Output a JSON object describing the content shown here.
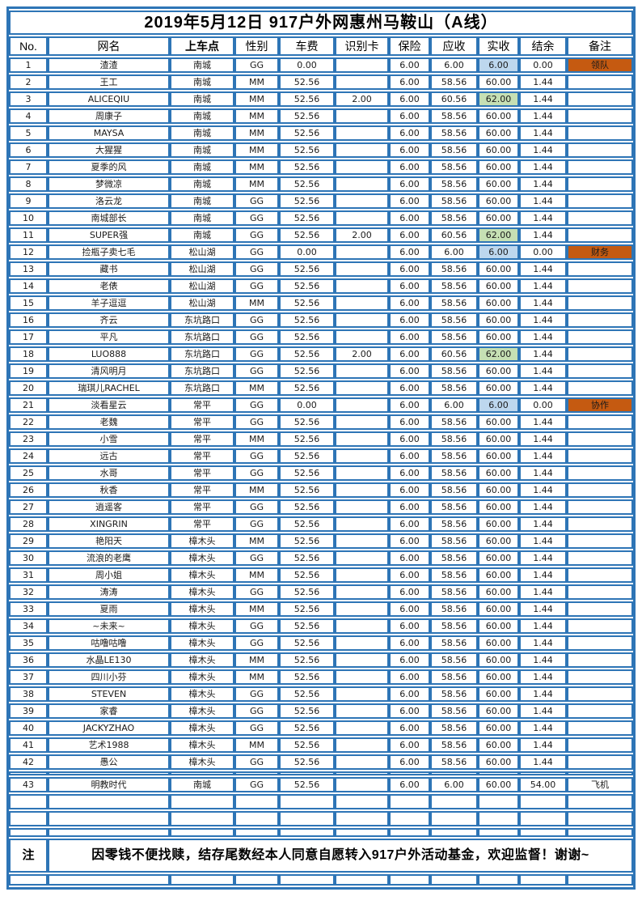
{
  "page": {
    "title": "2019年5月12日  917户外网惠州马鞍山（A线）"
  },
  "colors": {
    "border_blue": "#2E75B6",
    "fill_blue": "#BDD7EE",
    "fill_green": "#C6E0B4",
    "fill_orange": "#C55A11"
  },
  "table": {
    "columns": [
      {
        "key": "no",
        "label": "No."
      },
      {
        "key": "name",
        "label": "网名"
      },
      {
        "key": "stop",
        "label": "上车点"
      },
      {
        "key": "gender",
        "label": "性别"
      },
      {
        "key": "fare",
        "label": "车费"
      },
      {
        "key": "card",
        "label": "识别卡"
      },
      {
        "key": "insurance",
        "label": "保险"
      },
      {
        "key": "due",
        "label": "应收"
      },
      {
        "key": "paid",
        "label": "实收"
      },
      {
        "key": "balance",
        "label": "结余"
      },
      {
        "key": "remark",
        "label": "备注"
      }
    ],
    "rows": [
      {
        "no": "1",
        "name": "渣渣",
        "stop": "南城",
        "gender": "GG",
        "fare": "0.00",
        "card": "",
        "insurance": "6.00",
        "due": "6.00",
        "paid": "6.00",
        "balance": "0.00",
        "remark": "领队",
        "paid_hl": "blue",
        "remark_hl": true
      },
      {
        "no": "2",
        "name": "王工",
        "stop": "南城",
        "gender": "MM",
        "fare": "52.56",
        "card": "",
        "insurance": "6.00",
        "due": "58.56",
        "paid": "60.00",
        "balance": "1.44",
        "remark": ""
      },
      {
        "no": "3",
        "name": "ALICEQIU",
        "stop": "南城",
        "gender": "MM",
        "fare": "52.56",
        "card": "2.00",
        "insurance": "6.00",
        "due": "60.56",
        "paid": "62.00",
        "balance": "1.44",
        "remark": "",
        "paid_hl": "green"
      },
      {
        "no": "4",
        "name": "周康子",
        "stop": "南城",
        "gender": "MM",
        "fare": "52.56",
        "card": "",
        "insurance": "6.00",
        "due": "58.56",
        "paid": "60.00",
        "balance": "1.44",
        "remark": ""
      },
      {
        "no": "5",
        "name": "MAYSA",
        "stop": "南城",
        "gender": "MM",
        "fare": "52.56",
        "card": "",
        "insurance": "6.00",
        "due": "58.56",
        "paid": "60.00",
        "balance": "1.44",
        "remark": ""
      },
      {
        "no": "6",
        "name": "大猩猩",
        "stop": "南城",
        "gender": "MM",
        "fare": "52.56",
        "card": "",
        "insurance": "6.00",
        "due": "58.56",
        "paid": "60.00",
        "balance": "1.44",
        "remark": ""
      },
      {
        "no": "7",
        "name": "夏季的风",
        "stop": "南城",
        "gender": "MM",
        "fare": "52.56",
        "card": "",
        "insurance": "6.00",
        "due": "58.56",
        "paid": "60.00",
        "balance": "1.44",
        "remark": ""
      },
      {
        "no": "8",
        "name": "梦微凉",
        "stop": "南城",
        "gender": "MM",
        "fare": "52.56",
        "card": "",
        "insurance": "6.00",
        "due": "58.56",
        "paid": "60.00",
        "balance": "1.44",
        "remark": ""
      },
      {
        "no": "9",
        "name": "洛云龙",
        "stop": "南城",
        "gender": "GG",
        "fare": "52.56",
        "card": "",
        "insurance": "6.00",
        "due": "58.56",
        "paid": "60.00",
        "balance": "1.44",
        "remark": ""
      },
      {
        "no": "10",
        "name": "南城部长",
        "stop": "南城",
        "gender": "GG",
        "fare": "52.56",
        "card": "",
        "insurance": "6.00",
        "due": "58.56",
        "paid": "60.00",
        "balance": "1.44",
        "remark": ""
      },
      {
        "no": "11",
        "name": "SUPER强",
        "stop": "南城",
        "gender": "GG",
        "fare": "52.56",
        "card": "2.00",
        "insurance": "6.00",
        "due": "60.56",
        "paid": "62.00",
        "balance": "1.44",
        "remark": "",
        "paid_hl": "green"
      },
      {
        "no": "12",
        "name": "捡瓶子卖七毛",
        "stop": "松山湖",
        "gender": "GG",
        "fare": "0.00",
        "card": "",
        "insurance": "6.00",
        "due": "6.00",
        "paid": "6.00",
        "balance": "0.00",
        "remark": "财务",
        "paid_hl": "blue",
        "remark_hl": true
      },
      {
        "no": "13",
        "name": "藏书",
        "stop": "松山湖",
        "gender": "GG",
        "fare": "52.56",
        "card": "",
        "insurance": "6.00",
        "due": "58.56",
        "paid": "60.00",
        "balance": "1.44",
        "remark": ""
      },
      {
        "no": "14",
        "name": "老俵",
        "stop": "松山湖",
        "gender": "GG",
        "fare": "52.56",
        "card": "",
        "insurance": "6.00",
        "due": "58.56",
        "paid": "60.00",
        "balance": "1.44",
        "remark": ""
      },
      {
        "no": "15",
        "name": "羊子逗逗",
        "stop": "松山湖",
        "gender": "MM",
        "fare": "52.56",
        "card": "",
        "insurance": "6.00",
        "due": "58.56",
        "paid": "60.00",
        "balance": "1.44",
        "remark": ""
      },
      {
        "no": "16",
        "name": "齐云",
        "stop": "东坑路口",
        "gender": "GG",
        "fare": "52.56",
        "card": "",
        "insurance": "6.00",
        "due": "58.56",
        "paid": "60.00",
        "balance": "1.44",
        "remark": ""
      },
      {
        "no": "17",
        "name": "平凡",
        "stop": "东坑路口",
        "gender": "GG",
        "fare": "52.56",
        "card": "",
        "insurance": "6.00",
        "due": "58.56",
        "paid": "60.00",
        "balance": "1.44",
        "remark": ""
      },
      {
        "no": "18",
        "name": "LUO888",
        "stop": "东坑路口",
        "gender": "GG",
        "fare": "52.56",
        "card": "2.00",
        "insurance": "6.00",
        "due": "60.56",
        "paid": "62.00",
        "balance": "1.44",
        "remark": "",
        "paid_hl": "green"
      },
      {
        "no": "19",
        "name": "清风明月",
        "stop": "东坑路口",
        "gender": "GG",
        "fare": "52.56",
        "card": "",
        "insurance": "6.00",
        "due": "58.56",
        "paid": "60.00",
        "balance": "1.44",
        "remark": ""
      },
      {
        "no": "20",
        "name": "瑞琪儿RACHEL",
        "stop": "东坑路口",
        "gender": "MM",
        "fare": "52.56",
        "card": "",
        "insurance": "6.00",
        "due": "58.56",
        "paid": "60.00",
        "balance": "1.44",
        "remark": ""
      },
      {
        "no": "21",
        "name": "淡看星云",
        "stop": "常平",
        "gender": "GG",
        "fare": "0.00",
        "card": "",
        "insurance": "6.00",
        "due": "6.00",
        "paid": "6.00",
        "balance": "0.00",
        "remark": "协作",
        "paid_hl": "blue",
        "remark_hl": true
      },
      {
        "no": "22",
        "name": "老魏",
        "stop": "常平",
        "gender": "GG",
        "fare": "52.56",
        "card": "",
        "insurance": "6.00",
        "due": "58.56",
        "paid": "60.00",
        "balance": "1.44",
        "remark": ""
      },
      {
        "no": "23",
        "name": "小雪",
        "stop": "常平",
        "gender": "MM",
        "fare": "52.56",
        "card": "",
        "insurance": "6.00",
        "due": "58.56",
        "paid": "60.00",
        "balance": "1.44",
        "remark": ""
      },
      {
        "no": "24",
        "name": "远古",
        "stop": "常平",
        "gender": "GG",
        "fare": "52.56",
        "card": "",
        "insurance": "6.00",
        "due": "58.56",
        "paid": "60.00",
        "balance": "1.44",
        "remark": ""
      },
      {
        "no": "25",
        "name": "水哥",
        "stop": "常平",
        "gender": "GG",
        "fare": "52.56",
        "card": "",
        "insurance": "6.00",
        "due": "58.56",
        "paid": "60.00",
        "balance": "1.44",
        "remark": ""
      },
      {
        "no": "26",
        "name": "秋香",
        "stop": "常平",
        "gender": "MM",
        "fare": "52.56",
        "card": "",
        "insurance": "6.00",
        "due": "58.56",
        "paid": "60.00",
        "balance": "1.44",
        "remark": ""
      },
      {
        "no": "27",
        "name": "逍遥客",
        "stop": "常平",
        "gender": "GG",
        "fare": "52.56",
        "card": "",
        "insurance": "6.00",
        "due": "58.56",
        "paid": "60.00",
        "balance": "1.44",
        "remark": ""
      },
      {
        "no": "28",
        "name": "XINGRIN",
        "stop": "常平",
        "gender": "GG",
        "fare": "52.56",
        "card": "",
        "insurance": "6.00",
        "due": "58.56",
        "paid": "60.00",
        "balance": "1.44",
        "remark": ""
      },
      {
        "no": "29",
        "name": "艳阳天",
        "stop": "樟木头",
        "gender": "MM",
        "fare": "52.56",
        "card": "",
        "insurance": "6.00",
        "due": "58.56",
        "paid": "60.00",
        "balance": "1.44",
        "remark": ""
      },
      {
        "no": "30",
        "name": "流浪的老鹰",
        "stop": "樟木头",
        "gender": "GG",
        "fare": "52.56",
        "card": "",
        "insurance": "6.00",
        "due": "58.56",
        "paid": "60.00",
        "balance": "1.44",
        "remark": ""
      },
      {
        "no": "31",
        "name": "周小姐",
        "stop": "樟木头",
        "gender": "MM",
        "fare": "52.56",
        "card": "",
        "insurance": "6.00",
        "due": "58.56",
        "paid": "60.00",
        "balance": "1.44",
        "remark": ""
      },
      {
        "no": "32",
        "name": "涛涛",
        "stop": "樟木头",
        "gender": "GG",
        "fare": "52.56",
        "card": "",
        "insurance": "6.00",
        "due": "58.56",
        "paid": "60.00",
        "balance": "1.44",
        "remark": ""
      },
      {
        "no": "33",
        "name": "夏雨",
        "stop": "樟木头",
        "gender": "MM",
        "fare": "52.56",
        "card": "",
        "insurance": "6.00",
        "due": "58.56",
        "paid": "60.00",
        "balance": "1.44",
        "remark": ""
      },
      {
        "no": "34",
        "name": "~未来~",
        "stop": "樟木头",
        "gender": "GG",
        "fare": "52.56",
        "card": "",
        "insurance": "6.00",
        "due": "58.56",
        "paid": "60.00",
        "balance": "1.44",
        "remark": ""
      },
      {
        "no": "35",
        "name": "咕噜咕噜",
        "stop": "樟木头",
        "gender": "GG",
        "fare": "52.56",
        "card": "",
        "insurance": "6.00",
        "due": "58.56",
        "paid": "60.00",
        "balance": "1.44",
        "remark": ""
      },
      {
        "no": "36",
        "name": "水晶LE130",
        "stop": "樟木头",
        "gender": "MM",
        "fare": "52.56",
        "card": "",
        "insurance": "6.00",
        "due": "58.56",
        "paid": "60.00",
        "balance": "1.44",
        "remark": ""
      },
      {
        "no": "37",
        "name": "四川小芬",
        "stop": "樟木头",
        "gender": "MM",
        "fare": "52.56",
        "card": "",
        "insurance": "6.00",
        "due": "58.56",
        "paid": "60.00",
        "balance": "1.44",
        "remark": ""
      },
      {
        "no": "38",
        "name": "STEVEN",
        "stop": "樟木头",
        "gender": "GG",
        "fare": "52.56",
        "card": "",
        "insurance": "6.00",
        "due": "58.56",
        "paid": "60.00",
        "balance": "1.44",
        "remark": ""
      },
      {
        "no": "39",
        "name": "家睿",
        "stop": "樟木头",
        "gender": "GG",
        "fare": "52.56",
        "card": "",
        "insurance": "6.00",
        "due": "58.56",
        "paid": "60.00",
        "balance": "1.44",
        "remark": ""
      },
      {
        "no": "40",
        "name": "JACKYZHAO",
        "stop": "樟木头",
        "gender": "GG",
        "fare": "52.56",
        "card": "",
        "insurance": "6.00",
        "due": "58.56",
        "paid": "60.00",
        "balance": "1.44",
        "remark": ""
      },
      {
        "no": "41",
        "name": "艺术1988",
        "stop": "樟木头",
        "gender": "MM",
        "fare": "52.56",
        "card": "",
        "insurance": "6.00",
        "due": "58.56",
        "paid": "60.00",
        "balance": "1.44",
        "remark": ""
      },
      {
        "no": "42",
        "name": "愚公",
        "stop": "樟木头",
        "gender": "GG",
        "fare": "52.56",
        "card": "",
        "insurance": "6.00",
        "due": "58.56",
        "paid": "60.00",
        "balance": "1.44",
        "remark": ""
      },
      {
        "no": "43",
        "name": "明教时代",
        "stop": "南城",
        "gender": "GG",
        "fare": "52.56",
        "card": "",
        "insurance": "6.00",
        "due": "6.00",
        "paid": "60.00",
        "balance": "54.00",
        "remark": "飞机",
        "separator_above": true
      }
    ],
    "empty_rows_before_note": 2,
    "note": {
      "label": "注",
      "text": "因零钱不便找赎，结存尾数经本人同意自愿转入917户外活动基金，欢迎监督！谢谢~"
    }
  }
}
